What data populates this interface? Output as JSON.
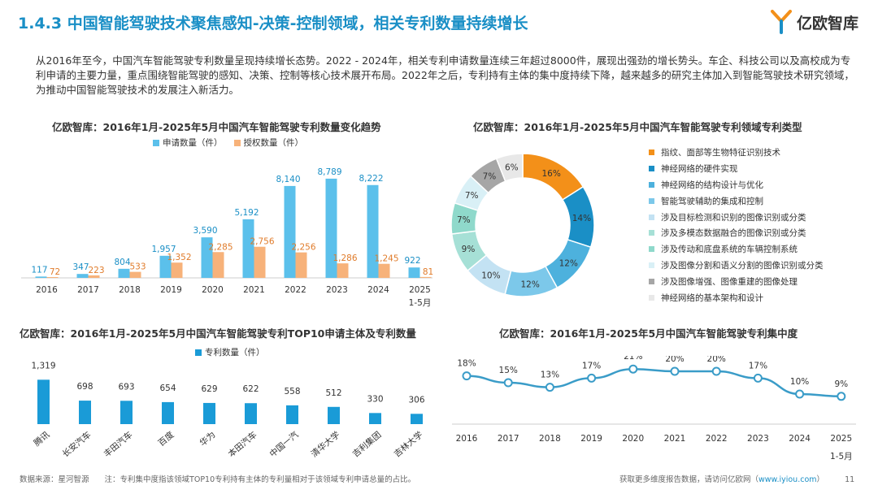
{
  "header": {
    "title": "1.4.3 中国智能驾驶技术聚焦感知-决策-控制领域，相关专利数量持续增长",
    "brand": "亿欧智库"
  },
  "intro": "从2016年至今，中国汽车智能驾驶专利数量呈现持续增长态势。2022 - 2024年，相关专利申请数量连续三年超过8000件，展现出强劲的增长势头。车企、科技公司以及高校成为专利申请的主要力量，重点围绕智能驾驶的感知、决策、控制等核心技术展开布局。2022年之后，专利持有主体的集中度持续下降，越来越多的研究主体加入到智能驾驶技术研究领域，为推动中国智能驾驶技术的发展注入新活力。",
  "colors": {
    "accent": "#1a8fc6",
    "apply": "#5bc0eb",
    "grant": "#f7b27a",
    "top10": "#1a9bd7",
    "line": "#3a9cc8"
  },
  "chart_data": [
    {
      "type": "bar",
      "title": "亿欧智库：2016年1月-2025年5月中国汽车智能驾驶专利数量变化趋势",
      "categories": [
        "2016",
        "2017",
        "2018",
        "2019",
        "2020",
        "2021",
        "2022",
        "2023",
        "2024",
        "2025\n1-5月"
      ],
      "series": [
        {
          "name": "申请数量（件）",
          "values": [
            117,
            347,
            804,
            1957,
            3590,
            5192,
            8140,
            8789,
            8222,
            922
          ]
        },
        {
          "name": "授权数量（件）",
          "values": [
            72,
            223,
            533,
            1352,
            2285,
            2756,
            2256,
            1286,
            1245,
            81
          ]
        }
      ],
      "ylim": [
        0,
        9500
      ]
    },
    {
      "type": "pie",
      "title": "亿欧智库：2016年1月-2025年5月中国汽车智能驾驶专利领域专利类型",
      "labels": [
        "指纹、面部等生物特征识别技术",
        "神经网络的硬件实现",
        "神经网络的结构设计与优化",
        "智能驾驶辅助的集成和控制",
        "涉及目标检测和识别的图像识别或分类",
        "涉及多模态数据融合的图像识别或分类",
        "涉及传动和底盘系统的车辆控制系统",
        "涉及图像分割和语义分割的图像识别或分类",
        "涉及图像增强、图像重建的图像处理",
        "神经网络的基本架构和设计"
      ],
      "values": [
        16,
        14,
        12,
        12,
        10,
        9,
        7,
        7,
        7,
        6
      ],
      "value_labels": [
        "16%",
        "14%",
        "12%",
        "12%",
        "10%",
        "9%",
        "7%",
        "7%",
        "7%",
        "6%"
      ],
      "colors": [
        "#f39019",
        "#1a8fc6",
        "#4db1dd",
        "#7cc8ea",
        "#c3e2f3",
        "#a6e0d6",
        "#8fd9cb",
        "#d9f0f6",
        "#a6a6a6",
        "#e8e8e8"
      ]
    },
    {
      "type": "bar",
      "title": "亿欧智库：2016年1月-2025年5月中国汽车智能驾驶专利TOP10申请主体及专利数量",
      "legend": "专利数量（件）",
      "categories": [
        "腾讯",
        "长安汽车",
        "丰田汽车",
        "百度",
        "华为",
        "本田汽车",
        "中国一汽",
        "清华大学",
        "吉利集团",
        "吉林大学"
      ],
      "values": [
        1319,
        698,
        693,
        654,
        629,
        622,
        558,
        512,
        330,
        306
      ],
      "value_labels": [
        "1,319",
        "698",
        "693",
        "654",
        "629",
        "622",
        "558",
        "512",
        "330",
        "306"
      ],
      "ylim": [
        0,
        1400
      ]
    },
    {
      "type": "line",
      "title": "亿欧智库：2016年1月-2025年5月中国汽车智能驾驶专利集中度",
      "categories": [
        "2016",
        "2017",
        "2018",
        "2019",
        "2020",
        "2021",
        "2022",
        "2023",
        "2024",
        "2025\n1-5月"
      ],
      "values": [
        18,
        15,
        13,
        17,
        21,
        20,
        20,
        17,
        10,
        9
      ],
      "value_labels": [
        "18%",
        "15%",
        "13%",
        "17%",
        "21%",
        "20%",
        "20%",
        "17%",
        "10%",
        "9%"
      ],
      "ylim": [
        0,
        25
      ]
    }
  ],
  "footer": {
    "source": "数据来源：星河智源",
    "note": "注：专利集中度指该领域TOP10专利持有主体的专利量相对于该领域专利申请总量的占比。",
    "more_prefix": "获取更多维度报告数据，请访问亿欧网（",
    "more_link": "www.iyiou.com",
    "more_suffix": "）",
    "page": "11"
  }
}
